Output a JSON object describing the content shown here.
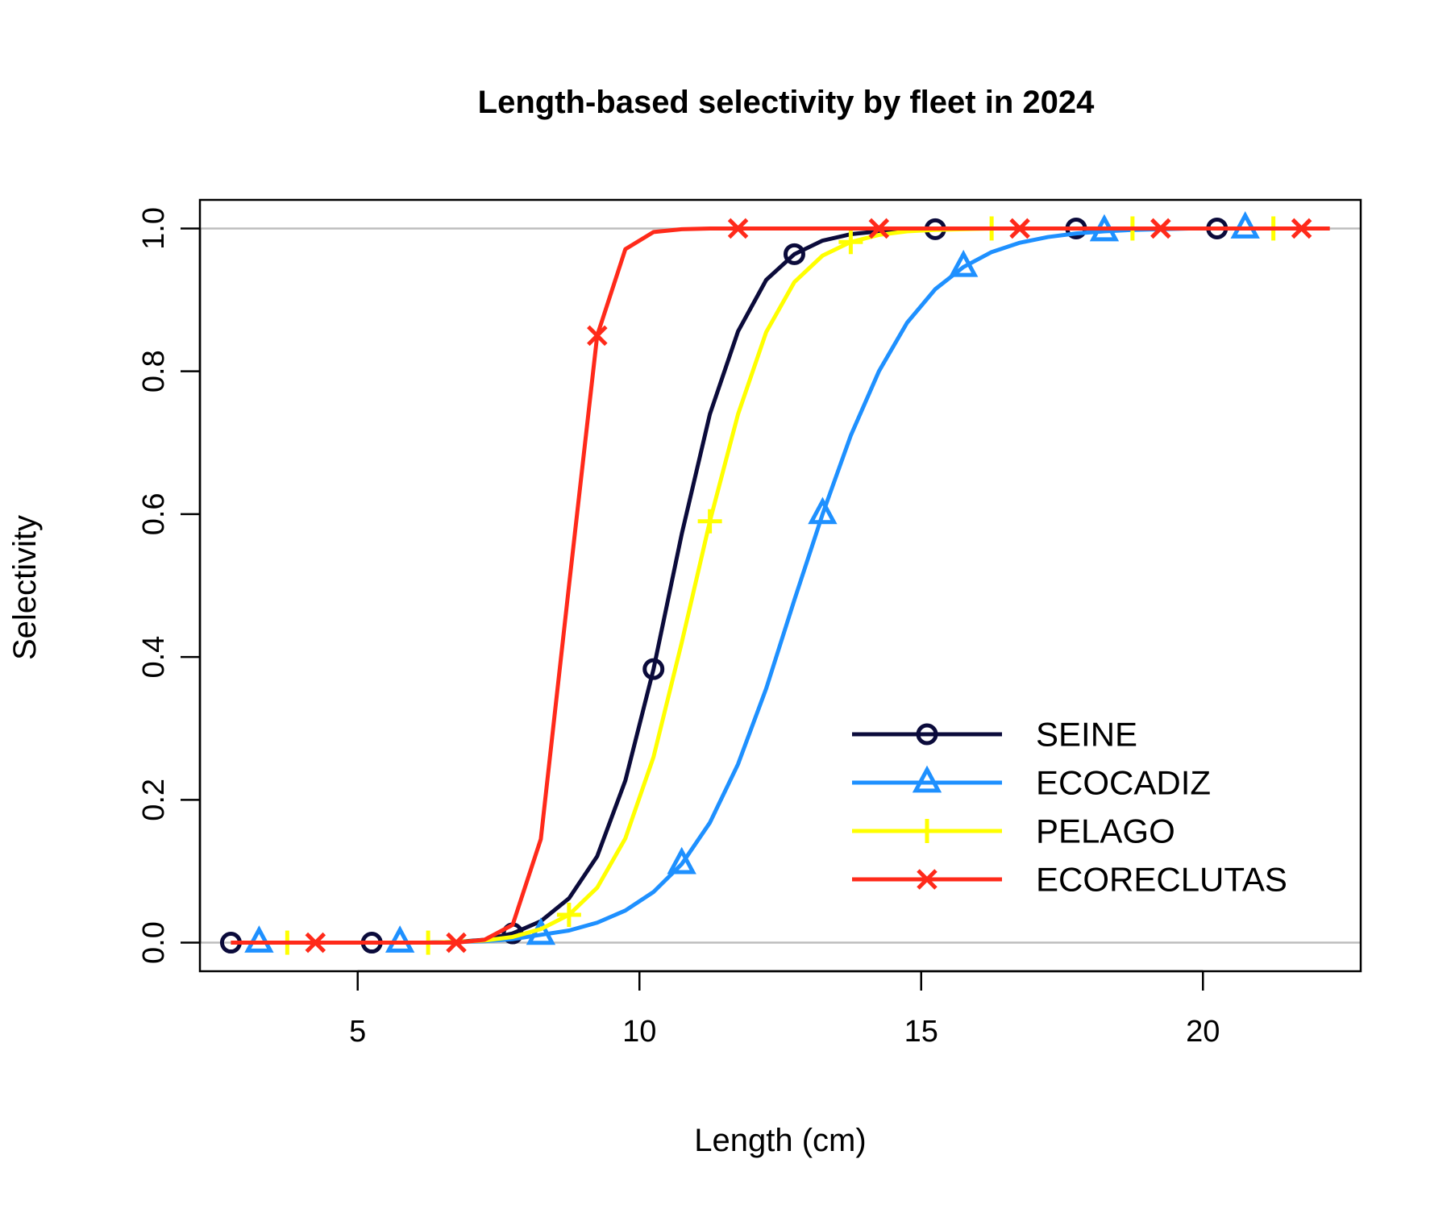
{
  "chart_data": {
    "type": "line",
    "title": "Length-based selectivity by fleet in 2024",
    "xlabel": "Length (cm)",
    "ylabel": "Selectivity",
    "xlim": [
      2.2,
      22.8
    ],
    "ylim": [
      -0.04,
      1.04
    ],
    "x_ticks": [
      5,
      10,
      15,
      20
    ],
    "x_tick_labels": [
      "5",
      "10",
      "15",
      "20"
    ],
    "y_ticks": [
      0.0,
      0.2,
      0.4,
      0.6,
      0.8,
      1.0
    ],
    "y_tick_labels": [
      "0.0",
      "0.2",
      "0.4",
      "0.6",
      "0.8",
      "1.0"
    ],
    "reference_lines_y": [
      0.0,
      1.0
    ],
    "legend_position": "bottom-right",
    "x": [
      2.75,
      3.25,
      3.75,
      4.25,
      4.75,
      5.25,
      5.75,
      6.25,
      6.75,
      7.25,
      7.75,
      8.25,
      8.75,
      9.25,
      9.75,
      10.25,
      10.75,
      11.25,
      11.75,
      12.25,
      12.75,
      13.25,
      13.75,
      14.25,
      14.75,
      15.25,
      15.75,
      16.25,
      16.75,
      17.25,
      17.75,
      18.25,
      18.75,
      19.25,
      19.75,
      20.25,
      20.75,
      21.25,
      21.75,
      22.25
    ],
    "series": [
      {
        "name": "SEINE",
        "color": "#0b0b3b",
        "marker": "circle",
        "marker_offset": 0,
        "values": [
          0.0,
          0.0,
          0.0,
          0.0,
          0.0,
          0.0,
          0.0,
          0.0,
          0.001,
          0.004,
          0.013,
          0.03,
          0.062,
          0.121,
          0.227,
          0.383,
          0.572,
          0.74,
          0.856,
          0.928,
          0.964,
          0.983,
          0.992,
          0.996,
          0.998,
          0.999,
          1.0,
          1.0,
          1.0,
          1.0,
          1.0,
          1.0,
          1.0,
          1.0,
          1.0,
          1.0,
          1.0,
          1.0,
          1.0,
          1.0
        ]
      },
      {
        "name": "ECOCADIZ",
        "color": "#1e90ff",
        "marker": "triangle",
        "marker_offset": 1,
        "values": [
          0.0,
          0.0,
          0.0,
          0.0,
          0.0,
          0.0,
          0.0,
          0.0,
          0.001,
          0.002,
          0.005,
          0.011,
          0.017,
          0.028,
          0.045,
          0.071,
          0.11,
          0.168,
          0.25,
          0.356,
          0.48,
          0.6,
          0.71,
          0.8,
          0.868,
          0.915,
          0.946,
          0.967,
          0.98,
          0.988,
          0.993,
          0.996,
          0.998,
          0.999,
          1.0,
          1.0,
          1.0,
          1.0,
          1.0,
          1.0
        ]
      },
      {
        "name": "PELAGO",
        "color": "#ffff00",
        "marker": "plus",
        "marker_offset": 2,
        "values": [
          0.0,
          0.0,
          0.0,
          0.0,
          0.0,
          0.0,
          0.0,
          0.0,
          0.001,
          0.003,
          0.008,
          0.019,
          0.039,
          0.077,
          0.146,
          0.26,
          0.42,
          0.59,
          0.74,
          0.855,
          0.925,
          0.962,
          0.981,
          0.991,
          0.996,
          0.998,
          0.999,
          1.0,
          1.0,
          1.0,
          1.0,
          1.0,
          1.0,
          1.0,
          1.0,
          1.0,
          1.0,
          1.0,
          1.0,
          1.0
        ]
      },
      {
        "name": "ECORECLUTAS",
        "color": "#ff2a1a",
        "marker": "x",
        "marker_offset": 3,
        "values": [
          0.0,
          0.0,
          0.0,
          0.0,
          0.0,
          0.0,
          0.0,
          0.0,
          0.0,
          0.004,
          0.025,
          0.145,
          0.5,
          0.85,
          0.971,
          0.995,
          0.999,
          1.0,
          1.0,
          1.0,
          1.0,
          1.0,
          1.0,
          1.0,
          1.0,
          1.0,
          1.0,
          1.0,
          1.0,
          1.0,
          1.0,
          1.0,
          1.0,
          1.0,
          1.0,
          1.0,
          1.0,
          1.0,
          1.0,
          1.0
        ]
      }
    ]
  }
}
